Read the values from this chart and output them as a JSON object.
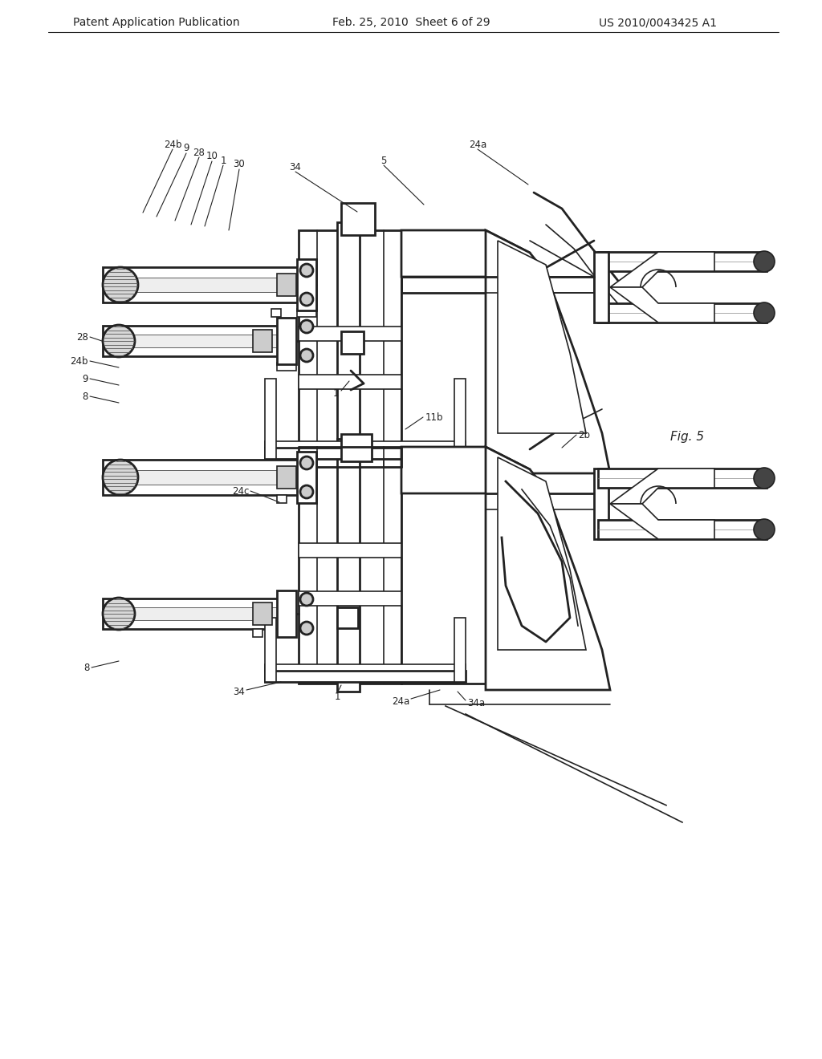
{
  "bg": "#ffffff",
  "lc": "#222222",
  "hdr_left": "Patent Application Publication",
  "hdr_mid": "Feb. 25, 2010  Sheet 6 of 29",
  "hdr_right": "US 2010/0043425 A1",
  "fig_label": "Fig. 5",
  "lw": 1.2,
  "lw2": 2.0,
  "lw3": 2.8,
  "fs": 8.5
}
